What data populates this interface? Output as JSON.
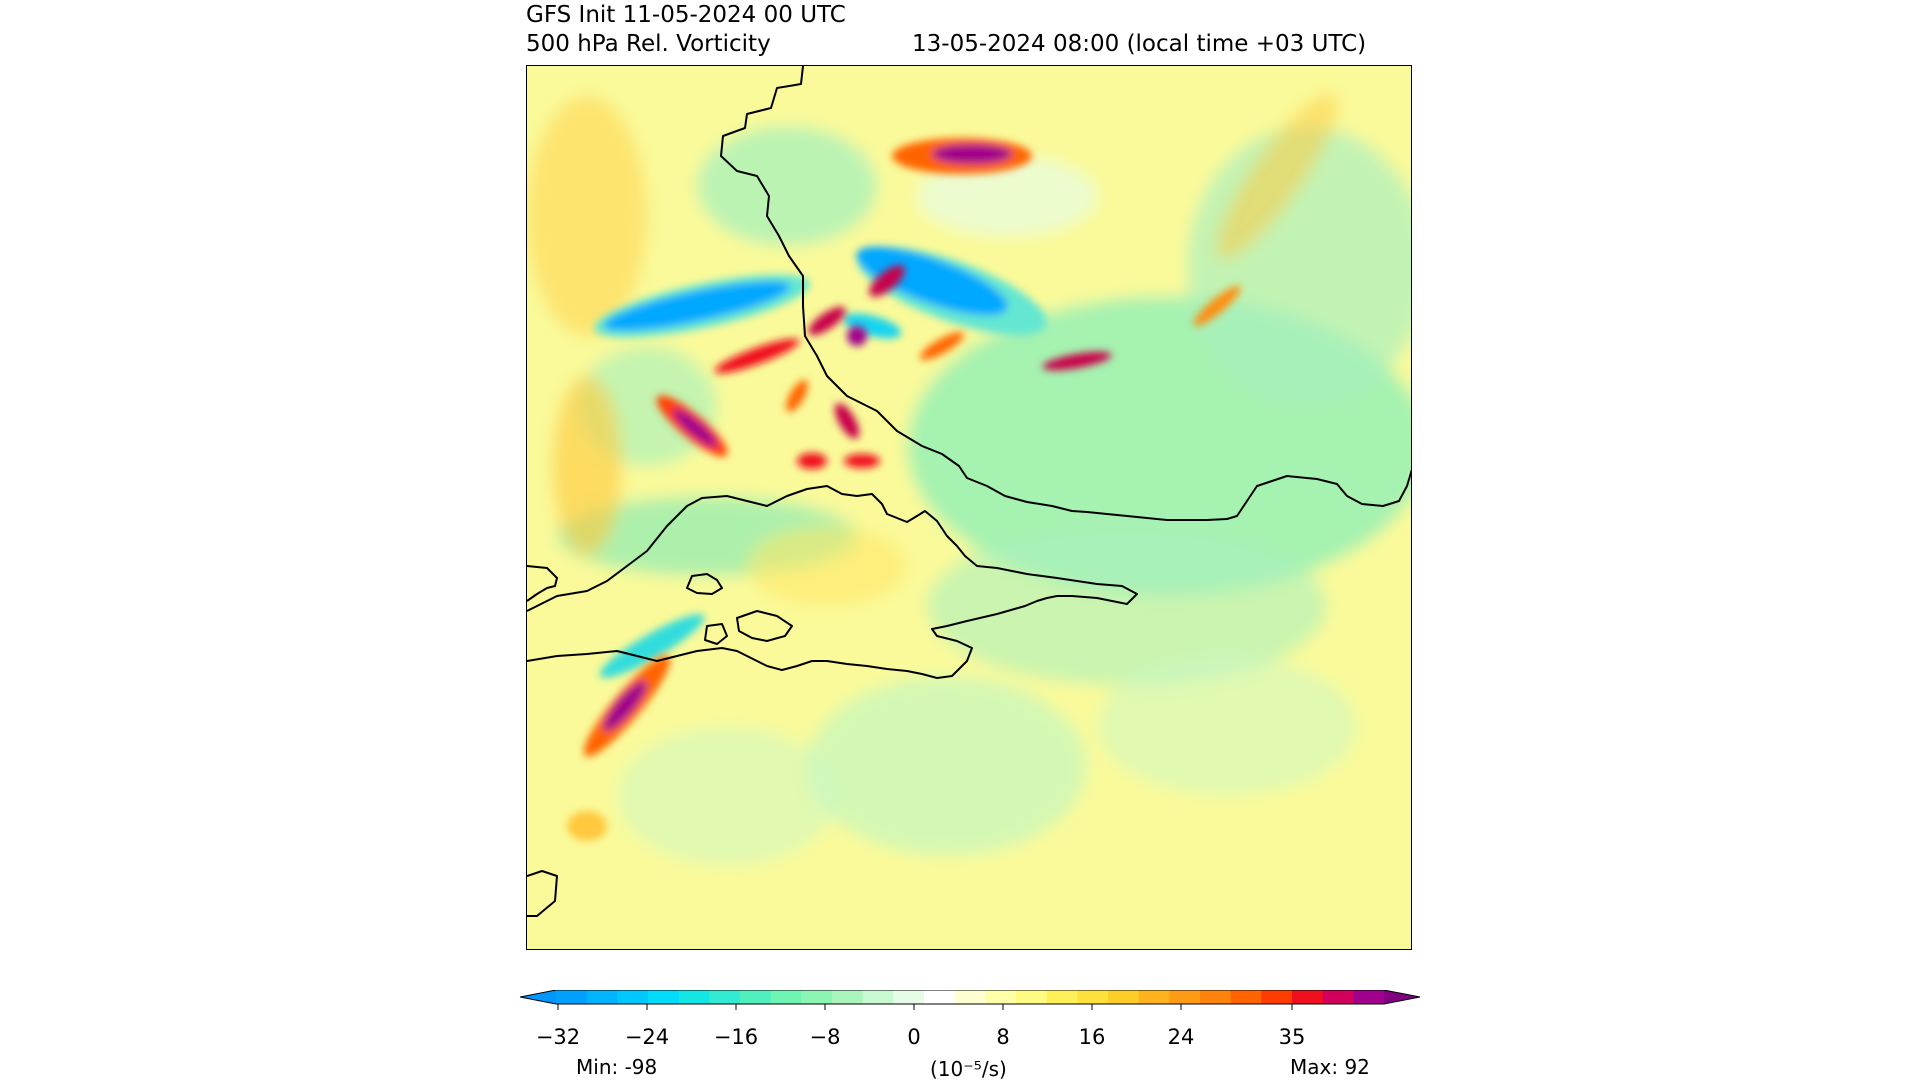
{
  "header": {
    "line1": "GFS Init 11-05-2024 00 UTC",
    "line2": "500 hPa Rel. Vorticity",
    "valid_time": "13-05-2024 08:00 (local time +03 UTC)"
  },
  "colorbar": {
    "ticks": [
      "−32",
      "−24",
      "−16",
      "−8",
      "0",
      "8",
      "16",
      "24",
      "35"
    ],
    "units": "(10⁻⁵/s)",
    "min_label": "Min: -98",
    "max_label": "Max: 92",
    "colors": [
      "#00a0ff",
      "#00b4ff",
      "#00c8ff",
      "#00dcfa",
      "#14e6e6",
      "#32ebd2",
      "#50f0be",
      "#6ef5b4",
      "#8cf5b4",
      "#aaf5be",
      "#c8fad2",
      "#e6fce6",
      "#ffffff",
      "#ffffd2",
      "#ffffaa",
      "#fffa82",
      "#fff05a",
      "#ffe13c",
      "#ffcd28",
      "#ffb41e",
      "#ff9b14",
      "#ff820a",
      "#ff6400",
      "#ff3c00",
      "#f00f1e",
      "#d2005a",
      "#a0008c"
    ],
    "under_color": "#0096ff",
    "over_color": "#800080"
  },
  "map": {
    "background": "#fafa9a",
    "coastline_color": "#000000"
  }
}
